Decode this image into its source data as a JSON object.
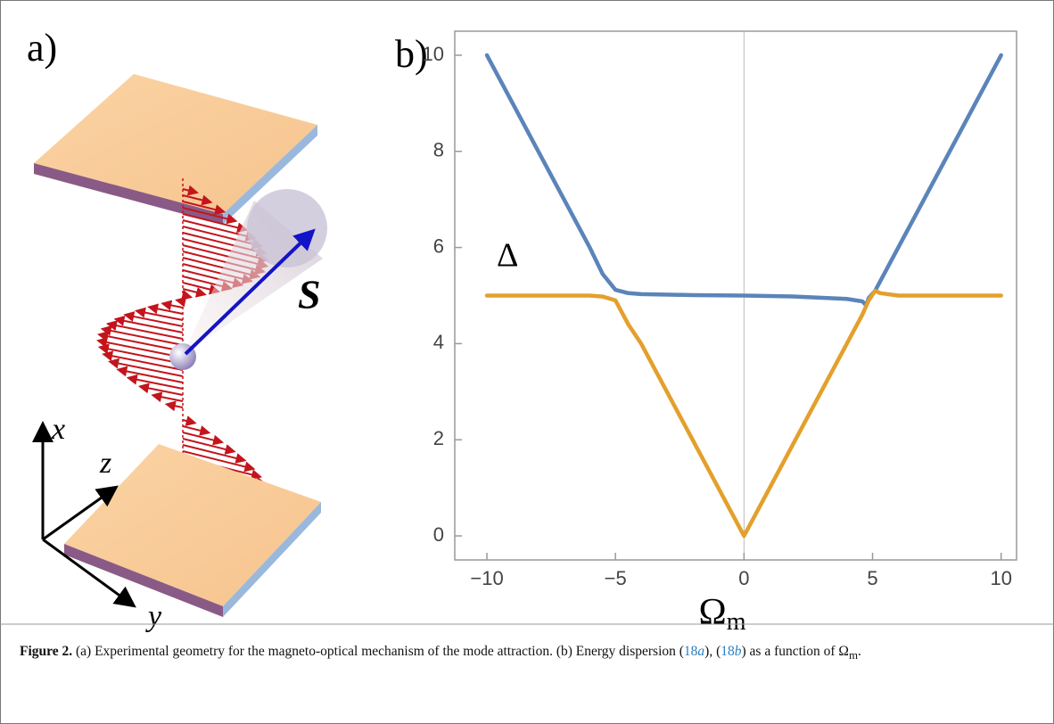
{
  "figure": {
    "panel_label": "a)",
    "axis_x": "x",
    "axis_z": "z",
    "axis_y": "y",
    "spin_label": "S"
  },
  "chart_data": {
    "type": "line",
    "panel_label": "b)",
    "annotation": "Δ",
    "xlabel_symbol": "Ω",
    "xlabel_subscript": "m",
    "xlim": [
      -11.25,
      10.6
    ],
    "ylim": [
      -0.5,
      10.5
    ],
    "xticks": [
      {
        "value": -10,
        "label": "−10"
      },
      {
        "value": -5,
        "label": "−5"
      },
      0,
      5,
      10
    ],
    "yticks": [
      0,
      2,
      4,
      6,
      8,
      10
    ],
    "zero_line": true,
    "series": [
      {
        "color": "#5b84b9",
        "x": [
          -10,
          -9,
          -8,
          -7,
          -6,
          -5.5,
          -5,
          -4.5,
          -4,
          -2,
          0,
          2,
          4,
          4.6,
          4.75,
          4.85,
          5.1,
          5.3,
          6,
          7,
          8,
          9,
          10
        ],
        "values": [
          10,
          9,
          8,
          7,
          6,
          5.45,
          5.12,
          5.05,
          5.03,
          5.01,
          5,
          4.98,
          4.93,
          4.88,
          4.8,
          4.95,
          5.1,
          5.3,
          6,
          7,
          8,
          9,
          10
        ]
      },
      {
        "color": "#e3a02c",
        "x": [
          -10,
          -6,
          -5.5,
          -5,
          -4.5,
          -4,
          -2,
          0,
          2,
          4,
          4.6,
          4.85,
          5.1,
          5.3,
          6,
          8,
          10
        ],
        "values": [
          5,
          5,
          4.98,
          4.9,
          4.4,
          4,
          2,
          0,
          2,
          4,
          4.6,
          4.9,
          5.1,
          5.05,
          5,
          5,
          5
        ]
      }
    ]
  },
  "caption": {
    "label": "Figure 2.",
    "text_1": " (a) Experimental geometry for the magneto-optical mechanism of the mode attraction. (b) Energy dispersion (",
    "ref_1_num": "18",
    "ref_1_letter": "a",
    "text_2": "), (",
    "ref_2_num": "18",
    "ref_2_letter": "b",
    "text_3": ") as a function of ",
    "symbol": "Ω",
    "subscript": "m",
    "text_4": "."
  }
}
